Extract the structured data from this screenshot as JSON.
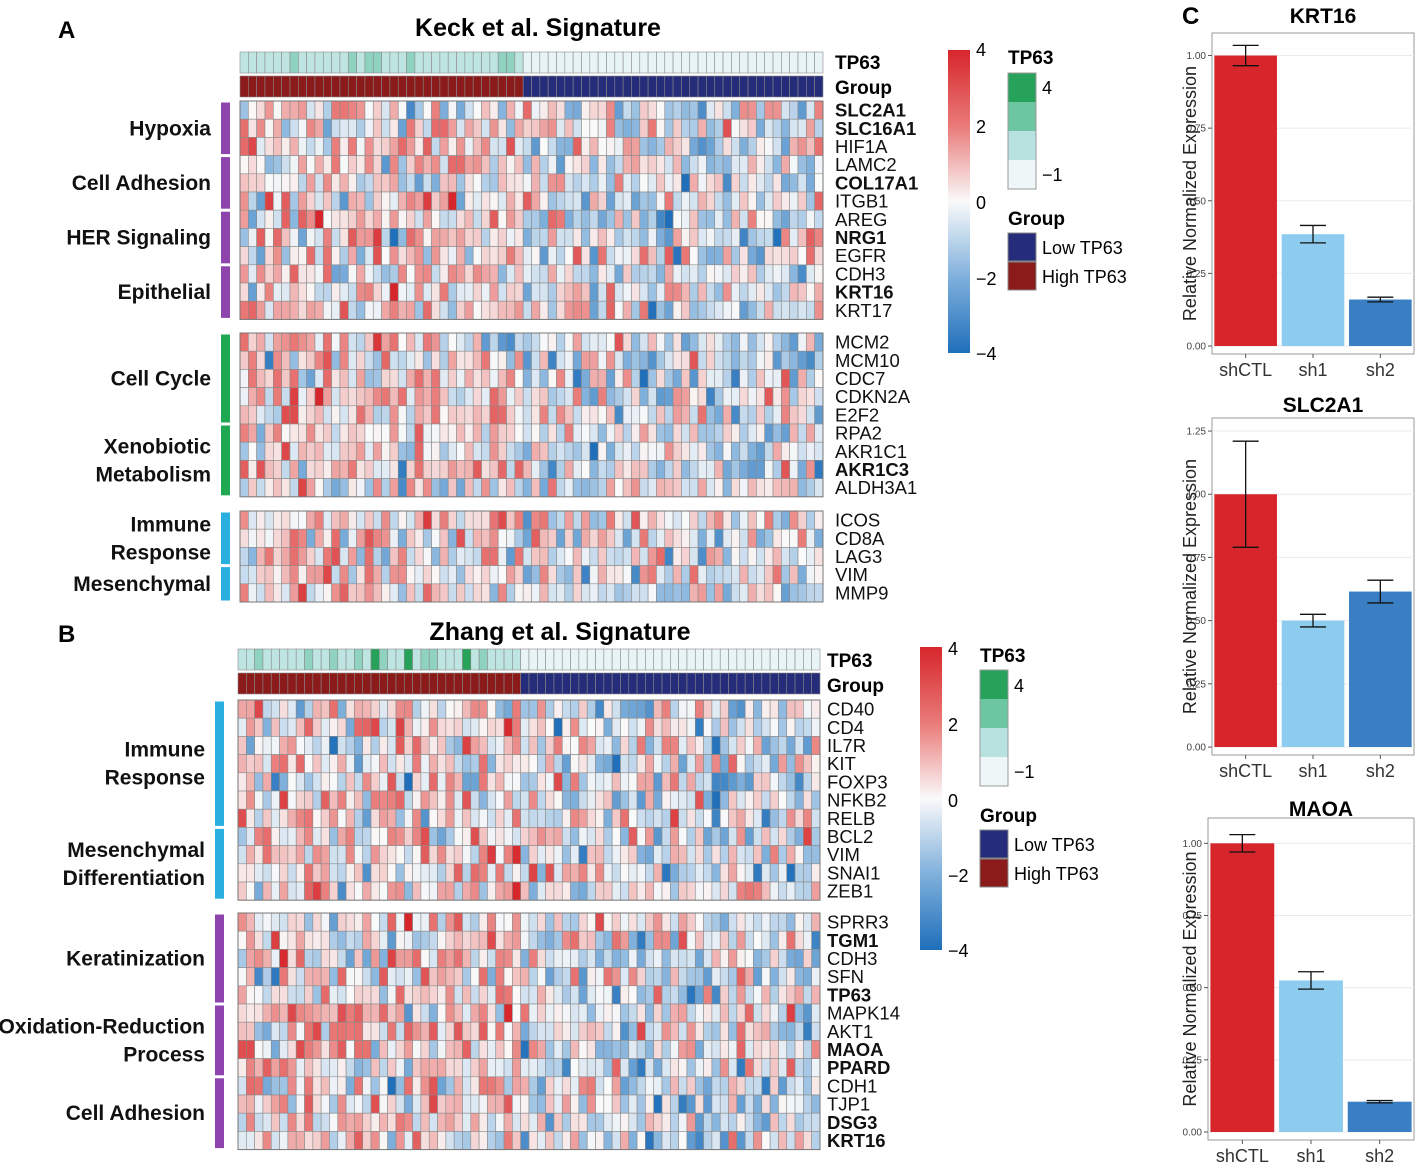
{
  "panels": {
    "A": {
      "label": "A",
      "title": "Keck et al. Signature",
      "annotation_rows": [
        "TP63",
        "Group"
      ],
      "blocks": [
        {
          "genes": [
            "SLC2A1",
            "SLC16A1",
            "HIF1A",
            "LAMC2",
            "COL17A1",
            "ITGB1",
            "AREG",
            "NRG1",
            "EGFR",
            "CDH3",
            "KRT16",
            "KRT17"
          ],
          "bold": [
            "SLC2A1",
            "SLC16A1",
            "COL17A1",
            "NRG1",
            "KRT16"
          ],
          "categories": [
            {
              "label": [
                "Hypoxia"
              ],
              "start": 0,
              "end": 2,
              "color": "#8E44AD"
            },
            {
              "label": [
                "Cell Adhesion"
              ],
              "start": 3,
              "end": 5,
              "color": "#8E44AD"
            },
            {
              "label": [
                "HER Signaling"
              ],
              "start": 6,
              "end": 8,
              "color": "#8E44AD"
            },
            {
              "label": [
                "Epithelial"
              ],
              "start": 9,
              "end": 11,
              "color": "#8E44AD"
            }
          ]
        },
        {
          "genes": [
            "MCM2",
            "MCM10",
            "CDC7",
            "CDKN2A",
            "E2F2",
            "RPA2",
            "AKR1C1",
            "AKR1C3",
            "ALDH3A1"
          ],
          "bold": [
            "AKR1C3"
          ],
          "categories": [
            {
              "label": [
                "Cell Cycle"
              ],
              "start": 0,
              "end": 4,
              "color": "#1DA851"
            },
            {
              "label": [
                "Xenobiotic",
                "Metabolism"
              ],
              "start": 5,
              "end": 8,
              "color": "#1DA851"
            }
          ]
        },
        {
          "genes": [
            "ICOS",
            "CD8A",
            "LAG3",
            "VIM",
            "MMP9"
          ],
          "bold": [],
          "categories": [
            {
              "label": [
                "Immune",
                "Response"
              ],
              "start": 0,
              "end": 2,
              "color": "#2AB0E0"
            },
            {
              "label": [
                "Mesenchymal"
              ],
              "start": 3,
              "end": 4,
              "color": "#2AB0E0"
            }
          ]
        }
      ],
      "legend": {
        "scale_ticks": [
          "4",
          "2",
          "0",
          "−2",
          "−4"
        ],
        "tp63_title": "TP63",
        "tp63_ticks": [
          "4",
          "−1"
        ],
        "group_title": "Group",
        "group_items": [
          "Low TP63",
          "High TP63"
        ]
      }
    },
    "B": {
      "label": "B",
      "title": "Zhang et al. Signature",
      "annotation_rows": [
        "TP63",
        "Group"
      ],
      "blocks": [
        {
          "genes": [
            "CD40",
            "CD4",
            "IL7R",
            "KIT",
            "FOXP3",
            "NFKB2",
            "RELB",
            "BCL2",
            "VIM",
            "SNAI1",
            "ZEB1"
          ],
          "bold": [],
          "categories": [
            {
              "label": [
                "Immune",
                "Response"
              ],
              "start": 0,
              "end": 6,
              "color": "#2AB0E0"
            },
            {
              "label": [
                "Mesenchymal",
                "Differentiation"
              ],
              "start": 7,
              "end": 10,
              "color": "#2AB0E0"
            }
          ]
        },
        {
          "genes": [
            "SPRR3",
            "TGM1",
            "CDH3",
            "SFN",
            "TP63",
            "MAPK14",
            "AKT1",
            "MAOA",
            "PPARD",
            "CDH1",
            "TJP1",
            "DSG3",
            "KRT16"
          ],
          "bold": [
            "TGM1",
            "TP63",
            "MAOA",
            "PPARD",
            "DSG3",
            "KRT16"
          ],
          "categories": [
            {
              "label": [
                "Keratinization"
              ],
              "start": 0,
              "end": 4,
              "color": "#8E44AD"
            },
            {
              "label": [
                "Oxidation-Reduction",
                "Process"
              ],
              "start": 5,
              "end": 8,
              "color": "#8E44AD"
            },
            {
              "label": [
                "Cell Adhesion"
              ],
              "start": 9,
              "end": 12,
              "color": "#8E44AD"
            }
          ]
        }
      ],
      "legend": {
        "scale_ticks": [
          "4",
          "2",
          "0",
          "−2",
          "−4"
        ],
        "tp63_title": "TP63",
        "tp63_ticks": [
          "4",
          "−1"
        ],
        "group_title": "Group",
        "group_items": [
          "Low TP63",
          "High TP63"
        ]
      }
    },
    "C": {
      "label": "C"
    }
  },
  "colors": {
    "high_tp63": "#8B1A1A",
    "low_tp63": "#252C7A",
    "bar_shctl": "#D7262B",
    "bar_sh1": "#8ECCEF",
    "bar_sh2": "#3A7FC4"
  },
  "chart_data": [
    {
      "type": "bar",
      "title": "KRT16",
      "categories": [
        "shCTL",
        "sh1",
        "sh2"
      ],
      "values": [
        1.0,
        0.385,
        0.16
      ],
      "errors": [
        0.035,
        0.03,
        0.008
      ],
      "ylabel": "Relative Normalized Expression",
      "xlabel": "",
      "ylim": [
        0,
        1.05
      ],
      "yticks": [
        "0.00",
        "0.25",
        "0.50",
        "0.75",
        "1.00"
      ]
    },
    {
      "type": "bar",
      "title": "SLC2A1",
      "categories": [
        "shCTL",
        "sh1",
        "sh2"
      ],
      "values": [
        1.0,
        0.5,
        0.615
      ],
      "errors": [
        0.21,
        0.025,
        0.045
      ],
      "ylabel": "Relative Normalized Expression",
      "xlabel": "",
      "ylim": [
        0,
        1.27
      ],
      "yticks": [
        "0.00",
        "0.25",
        "0.50",
        "0.75",
        "1.00",
        "1.25"
      ]
    },
    {
      "type": "bar",
      "title": "MAOA",
      "categories": [
        "shCTL",
        "sh1",
        "sh2"
      ],
      "values": [
        1.0,
        0.525,
        0.105
      ],
      "errors": [
        0.03,
        0.03,
        0.004
      ],
      "ylabel": "Relative Normalized Expression",
      "xlabel": "",
      "ylim": [
        0,
        1.06
      ],
      "yticks": [
        "0.00",
        "0.25",
        "0.50",
        "0.75",
        "1.00"
      ]
    }
  ]
}
